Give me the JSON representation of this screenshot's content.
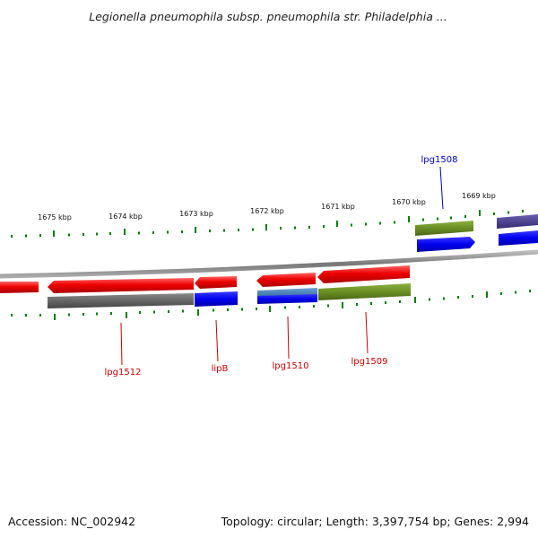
{
  "title": "Legionella pneumophila subsp. pneumophila str. Philadelphia ...",
  "kbp_labels": [
    "1675 kbp",
    "1674 kbp",
    "1673 kbp",
    "1672 kbp",
    "1671 kbp",
    "1670 kbp",
    "1669 kbp"
  ],
  "gene_labels": {
    "lpg1508": "lpg1508",
    "lpg1512": "lpg1512",
    "lipB": "lipB",
    "lpg1510": "lpg1510",
    "lpg1509": "lpg1509"
  },
  "footer": {
    "accession": "Accession: NC_002942",
    "summary": "Topology: circular; Length: 3,397,754 bp; Genes: 2,994"
  },
  "colors": {
    "backbone": "#888888",
    "forward_cds": "#ee0000",
    "blue_track": "#0000ee",
    "olive_track": "#6b8e23",
    "grey_track": "#666666",
    "steel_track": "#4682b4",
    "navy_track": "#483d8b",
    "tick": "#008000",
    "label_red": "#cc0000",
    "label_blue": "#0000cc"
  }
}
